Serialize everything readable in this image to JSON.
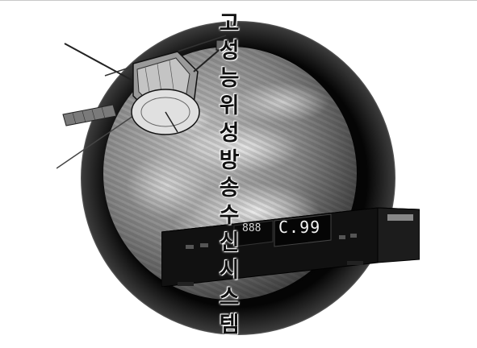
{
  "title_chars": [
    "고",
    "성",
    "능",
    "위",
    "성",
    "방",
    "송",
    "수",
    "신",
    "시",
    "스",
    "템"
  ],
  "receiver_display": "C.99",
  "receiver_small_display": "888"
}
